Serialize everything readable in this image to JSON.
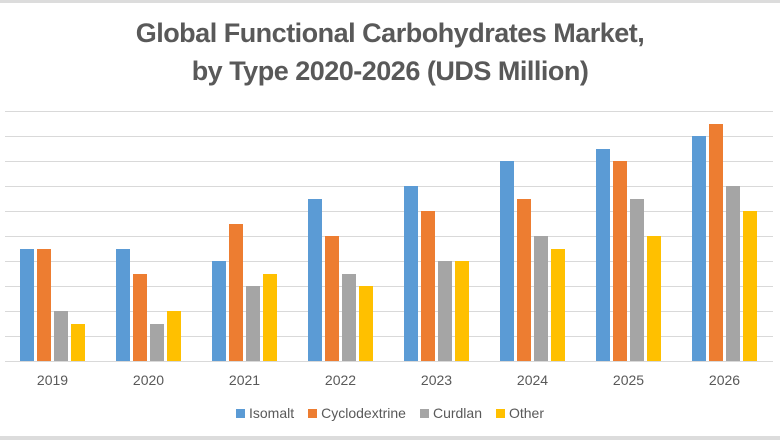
{
  "title_line1": "Global Functional Carbohydrates Market,",
  "title_line2": "by Type 2020-2026 (UDS Million)",
  "legend": [
    {
      "label": "Isomalt",
      "color": "#5b9bd5"
    },
    {
      "label": "Cyclodextrine",
      "color": "#ed7d31"
    },
    {
      "label": "Curdlan",
      "color": "#a5a5a5"
    },
    {
      "label": "Other",
      "color": "#ffc000"
    }
  ],
  "chart_data": {
    "type": "bar",
    "title": "Global Functional Carbohydrates Market, by Type 2020-2026 (UDS Million)",
    "xlabel": "",
    "ylabel": "",
    "categories": [
      "2019",
      "2020",
      "2021",
      "2022",
      "2023",
      "2024",
      "2025",
      "2026"
    ],
    "series": [
      {
        "name": "Isomalt",
        "color": "#5b9bd5",
        "values": [
          4.5,
          4.5,
          4,
          6.5,
          7,
          8,
          8.5,
          9
        ]
      },
      {
        "name": "Cyclodextrine",
        "color": "#ed7d31",
        "values": [
          4.5,
          3.5,
          5.5,
          5,
          6,
          6.5,
          8,
          9.5
        ]
      },
      {
        "name": "Curdlan",
        "color": "#a5a5a5",
        "values": [
          2,
          1.5,
          3,
          3.5,
          4,
          5,
          6.5,
          7
        ]
      },
      {
        "name": "Other",
        "color": "#ffc000",
        "values": [
          1.5,
          2,
          3.5,
          3,
          4,
          4.5,
          5,
          6
        ]
      }
    ],
    "ylim": [
      0,
      10
    ],
    "grid": true,
    "y_tick_labels_visible": false,
    "legend_position": "bottom"
  }
}
